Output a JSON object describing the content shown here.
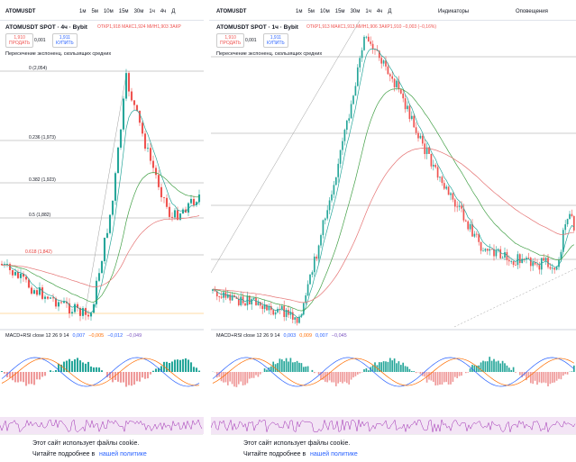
{
  "left": {
    "symbol": "ATOMUSDT",
    "timeframes": [
      "1м",
      "5м",
      "10м",
      "15м",
      "30м",
      "1ч",
      "4ч",
      "Д"
    ],
    "title": "ATOMUSDT SPOT · 4ч · Bybit",
    "ohlc": "ОТКР1,918 МАКС1,924 МИН1,903 ЗАКР",
    "sell_price": "1,910",
    "sell_label": "ПРОДАТЬ",
    "spread": "0,001",
    "buy_price": "1,911",
    "buy_label": "КУПИТЬ",
    "indicator": "Пересечение экспоненц. скользящих средних",
    "fib": [
      "0 (2,054)",
      "0.236 (1,973)",
      "0.382 (1,923)",
      "0.5 (1,882)",
      "0.618 (1,842)"
    ],
    "macd_label": "MACD+RSI close 12 26 9 14",
    "macd_values": [
      "0,007",
      "−0,005",
      "−0,012",
      "−0,049"
    ]
  },
  "right": {
    "symbol": "ATOMUSDT",
    "timeframes": [
      "1м",
      "5м",
      "10м",
      "15м",
      "30м",
      "1ч",
      "4ч",
      "Д"
    ],
    "indicators": "Индикаторы",
    "alerts": "Оповещения",
    "title": "ATOMUSDT SPOT · 1ч · Bybit",
    "ohlc": "ОТКР1,913 МАКС1,913 МИН1,906 ЗАКР1,910 −0,003 (−0,16%)",
    "sell_price": "1,910",
    "sell_label": "ПРОДАТЬ",
    "spread": "0,001",
    "buy_price": "1,911",
    "buy_label": "КУПИТЬ",
    "indicator": "Пересечение экспоненц. скользящих средних",
    "macd_label": "MACD+RSI close 12 26 9 14",
    "macd_values": [
      "0,003",
      "0,009",
      "0,007",
      "−0,045"
    ]
  },
  "cookies": [
    {
      "line1": "Этот сайт использует файлы cookie.",
      "line2": "Читайте подробнее в",
      "link": "нашей политике"
    },
    {
      "line1": "Этот сайт использует файлы cookie.",
      "line2": "Читайте подробнее в",
      "link": "нашей политике"
    }
  ]
}
